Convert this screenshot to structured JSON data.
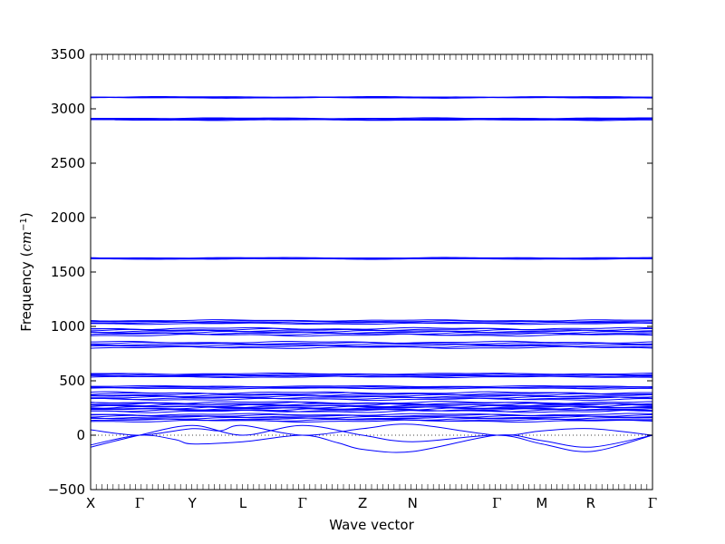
{
  "chart_data": {
    "type": "line",
    "title": "",
    "xlabel": "Wave vector",
    "ylabel": "Frequency",
    "ylabel_unit_base": "cm",
    "ylabel_unit_exp": "−1",
    "ylim": [
      -500,
      3500
    ],
    "yticks": [
      -500,
      0,
      500,
      1000,
      1500,
      2000,
      2500,
      3000,
      3500
    ],
    "xlim": [
      0,
      1
    ],
    "xticks": [
      {
        "label": "X",
        "pos": 0.0
      },
      {
        "label": "Γ",
        "pos": 0.087
      },
      {
        "label": "Y",
        "pos": 0.181
      },
      {
        "label": "L",
        "pos": 0.271
      },
      {
        "label": "Γ",
        "pos": 0.377
      },
      {
        "label": "Z",
        "pos": 0.484
      },
      {
        "label": "N",
        "pos": 0.573
      },
      {
        "label": "Γ",
        "pos": 0.723
      },
      {
        "label": "M",
        "pos": 0.803
      },
      {
        "label": "R",
        "pos": 0.89
      },
      {
        "label": "Γ",
        "pos": 1.0
      }
    ],
    "zero_line": {
      "y": 0,
      "style": "dotted"
    },
    "line_color": "#0000ff",
    "flat_bands": [
      {
        "value": 3105,
        "lines": 4,
        "spread": 8
      },
      {
        "value": 2905,
        "lines": 6,
        "spread": 16
      },
      {
        "value": 1625,
        "lines": 5,
        "spread": 10
      },
      {
        "value": 1040,
        "lines": 5,
        "spread": 30
      },
      {
        "value": 950,
        "lines": 8,
        "spread": 60
      },
      {
        "value": 830,
        "lines": 6,
        "spread": 50
      },
      {
        "value": 550,
        "lines": 6,
        "spread": 30
      },
      {
        "value": 440,
        "lines": 4,
        "spread": 20
      },
      {
        "value": 360,
        "lines": 8,
        "spread": 60
      },
      {
        "value": 260,
        "lines": 12,
        "spread": 80
      },
      {
        "value": 160,
        "lines": 8,
        "spread": 60
      }
    ],
    "acoustic_branches": [
      {
        "name": "",
        "points": [
          [
            0.0,
            -110
          ],
          [
            0.087,
            0
          ],
          [
            0.181,
            90
          ],
          [
            0.271,
            0
          ],
          [
            0.377,
            90
          ],
          [
            0.484,
            0
          ],
          [
            0.573,
            -60
          ],
          [
            0.723,
            0
          ],
          [
            0.803,
            -80
          ],
          [
            0.89,
            -150
          ],
          [
            1.0,
            0
          ]
        ]
      },
      {
        "name": "",
        "points": [
          [
            0.0,
            -90
          ],
          [
            0.087,
            0
          ],
          [
            0.15,
            -40
          ],
          [
            0.181,
            -80
          ],
          [
            0.271,
            -60
          ],
          [
            0.377,
            0
          ],
          [
            0.44,
            -70
          ],
          [
            0.484,
            -130
          ],
          [
            0.573,
            -150
          ],
          [
            0.723,
            0
          ],
          [
            0.803,
            -50
          ],
          [
            0.89,
            -110
          ],
          [
            1.0,
            0
          ]
        ]
      },
      {
        "name": "",
        "points": [
          [
            0.0,
            50
          ],
          [
            0.087,
            0
          ],
          [
            0.181,
            60
          ],
          [
            0.23,
            40
          ],
          [
            0.271,
            90
          ],
          [
            0.377,
            0
          ],
          [
            0.484,
            60
          ],
          [
            0.573,
            100
          ],
          [
            0.723,
            0
          ],
          [
            0.803,
            40
          ],
          [
            0.89,
            60
          ],
          [
            1.0,
            0
          ]
        ]
      }
    ]
  }
}
